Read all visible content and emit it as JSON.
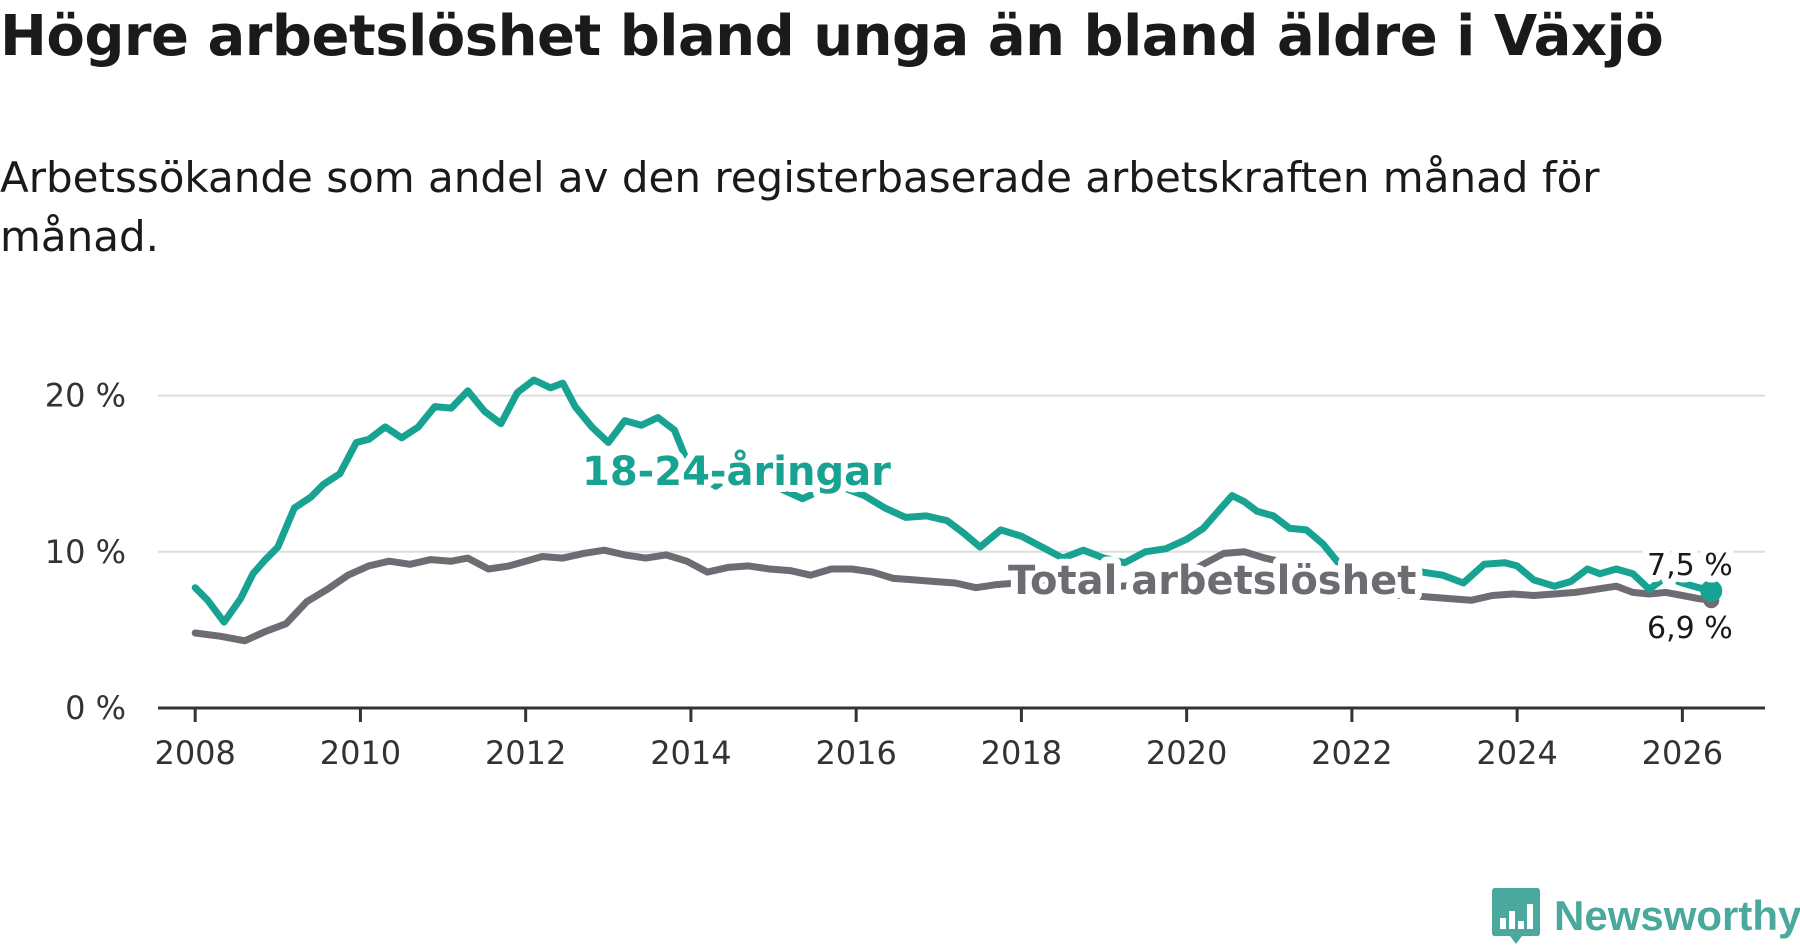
{
  "title": "Högre arbetslöshet bland unga än bland äldre i Växjö",
  "subtitle": "Arbetssökande som andel av den registerbaserade arbetskraften månad för månad.",
  "brand": {
    "name": "Newsworthy",
    "icon": "bar-chart-bubble-icon"
  },
  "colors": {
    "youth": "#17a291",
    "total": "#6f6b73",
    "grid": "#dddddd",
    "axis": "#333333"
  },
  "chart_data": {
    "type": "line",
    "title": "Högre arbetslöshet bland unga än bland äldre i Växjö",
    "xlabel": "",
    "ylabel": "",
    "xlim": [
      2007.55,
      2027.0
    ],
    "ylim": [
      0,
      21
    ],
    "x_ticks": [
      2008,
      2010,
      2012,
      2014,
      2016,
      2018,
      2020,
      2022,
      2024,
      2026
    ],
    "x_tick_labels": [
      "2008",
      "2010",
      "2012",
      "2014",
      "2016",
      "2018",
      "2020",
      "2022",
      "2024",
      "2026"
    ],
    "y_ticks": [
      0,
      10,
      20
    ],
    "y_tick_labels": [
      "0 %",
      "10 %",
      "20 %"
    ],
    "grid": true,
    "series": [
      {
        "name": "18-24-åringar",
        "label": "18-24-åringar",
        "end_label": "7,5 %",
        "points": [
          [
            2008.0,
            7.7
          ],
          [
            2008.15,
            6.9
          ],
          [
            2008.35,
            5.5
          ],
          [
            2008.55,
            7.0
          ],
          [
            2008.7,
            8.6
          ],
          [
            2008.85,
            9.5
          ],
          [
            2009.0,
            10.3
          ],
          [
            2009.2,
            12.8
          ],
          [
            2009.4,
            13.5
          ],
          [
            2009.55,
            14.3
          ],
          [
            2009.75,
            15.0
          ],
          [
            2009.95,
            17.0
          ],
          [
            2010.1,
            17.2
          ],
          [
            2010.3,
            18.0
          ],
          [
            2010.5,
            17.3
          ],
          [
            2010.7,
            18.0
          ],
          [
            2010.9,
            19.3
          ],
          [
            2011.1,
            19.2
          ],
          [
            2011.3,
            20.3
          ],
          [
            2011.5,
            19.0
          ],
          [
            2011.7,
            18.2
          ],
          [
            2011.9,
            20.2
          ],
          [
            2012.1,
            21.0
          ],
          [
            2012.3,
            20.5
          ],
          [
            2012.45,
            20.8
          ],
          [
            2012.6,
            19.3
          ],
          [
            2012.8,
            18.0
          ],
          [
            2013.0,
            17.0
          ],
          [
            2013.2,
            18.4
          ],
          [
            2013.4,
            18.1
          ],
          [
            2013.6,
            18.6
          ],
          [
            2013.8,
            17.8
          ],
          [
            2014.0,
            15.2
          ],
          [
            2014.3,
            14.2
          ],
          [
            2014.6,
            15.3
          ],
          [
            2014.9,
            14.8
          ],
          [
            2015.1,
            14.0
          ],
          [
            2015.35,
            13.4
          ],
          [
            2015.6,
            14.0
          ],
          [
            2015.85,
            14.1
          ],
          [
            2016.1,
            13.6
          ],
          [
            2016.35,
            12.8
          ],
          [
            2016.6,
            12.2
          ],
          [
            2016.85,
            12.3
          ],
          [
            2017.1,
            12.0
          ],
          [
            2017.3,
            11.2
          ],
          [
            2017.5,
            10.3
          ],
          [
            2017.75,
            11.4
          ],
          [
            2018.0,
            11.0
          ],
          [
            2018.25,
            10.3
          ],
          [
            2018.5,
            9.6
          ],
          [
            2018.75,
            10.1
          ],
          [
            2019.0,
            9.6
          ],
          [
            2019.25,
            9.3
          ],
          [
            2019.5,
            10.0
          ],
          [
            2019.75,
            10.2
          ],
          [
            2020.0,
            10.8
          ],
          [
            2020.2,
            11.5
          ],
          [
            2020.4,
            12.7
          ],
          [
            2020.55,
            13.6
          ],
          [
            2020.7,
            13.2
          ],
          [
            2020.85,
            12.6
          ],
          [
            2021.05,
            12.3
          ],
          [
            2021.25,
            11.5
          ],
          [
            2021.45,
            11.4
          ],
          [
            2021.65,
            10.5
          ],
          [
            2021.85,
            9.2
          ],
          [
            2022.0,
            8.4
          ],
          [
            2022.2,
            8.2
          ],
          [
            2022.45,
            8.3
          ],
          [
            2022.65,
            8.9
          ],
          [
            2022.85,
            8.7
          ],
          [
            2023.1,
            8.5
          ],
          [
            2023.35,
            8.0
          ],
          [
            2023.6,
            9.2
          ],
          [
            2023.85,
            9.3
          ],
          [
            2024.0,
            9.1
          ],
          [
            2024.2,
            8.2
          ],
          [
            2024.45,
            7.8
          ],
          [
            2024.65,
            8.1
          ],
          [
            2024.85,
            8.9
          ],
          [
            2025.0,
            8.6
          ],
          [
            2025.2,
            8.9
          ],
          [
            2025.4,
            8.6
          ],
          [
            2025.6,
            7.6
          ],
          [
            2025.8,
            8.4
          ],
          [
            2026.0,
            8.0
          ],
          [
            2026.2,
            7.7
          ],
          [
            2026.35,
            7.5
          ]
        ]
      },
      {
        "name": "Total arbetslöshet",
        "label": "Total arbetslöshet",
        "end_label": "6,9 %",
        "points": [
          [
            2008.0,
            4.8
          ],
          [
            2008.3,
            4.6
          ],
          [
            2008.6,
            4.3
          ],
          [
            2008.85,
            4.9
          ],
          [
            2009.1,
            5.4
          ],
          [
            2009.35,
            6.8
          ],
          [
            2009.6,
            7.6
          ],
          [
            2009.85,
            8.5
          ],
          [
            2010.1,
            9.1
          ],
          [
            2010.35,
            9.4
          ],
          [
            2010.6,
            9.2
          ],
          [
            2010.85,
            9.5
          ],
          [
            2011.1,
            9.4
          ],
          [
            2011.3,
            9.6
          ],
          [
            2011.55,
            8.9
          ],
          [
            2011.8,
            9.1
          ],
          [
            2012.0,
            9.4
          ],
          [
            2012.2,
            9.7
          ],
          [
            2012.45,
            9.6
          ],
          [
            2012.7,
            9.9
          ],
          [
            2012.95,
            10.1
          ],
          [
            2013.2,
            9.8
          ],
          [
            2013.45,
            9.6
          ],
          [
            2013.7,
            9.8
          ],
          [
            2013.95,
            9.4
          ],
          [
            2014.2,
            8.7
          ],
          [
            2014.45,
            9.0
          ],
          [
            2014.7,
            9.1
          ],
          [
            2014.95,
            8.9
          ],
          [
            2015.2,
            8.8
          ],
          [
            2015.45,
            8.5
          ],
          [
            2015.7,
            8.9
          ],
          [
            2015.95,
            8.9
          ],
          [
            2016.2,
            8.7
          ],
          [
            2016.45,
            8.3
          ],
          [
            2016.7,
            8.2
          ],
          [
            2016.95,
            8.1
          ],
          [
            2017.2,
            8.0
          ],
          [
            2017.45,
            7.7
          ],
          [
            2017.7,
            7.9
          ],
          [
            2017.95,
            8.0
          ],
          [
            2018.2,
            8.1
          ],
          [
            2018.45,
            8.0
          ],
          [
            2018.7,
            7.9
          ],
          [
            2018.95,
            7.8
          ],
          [
            2019.2,
            7.8
          ],
          [
            2019.45,
            7.9
          ],
          [
            2019.7,
            8.0
          ],
          [
            2019.95,
            8.4
          ],
          [
            2020.2,
            9.2
          ],
          [
            2020.45,
            9.9
          ],
          [
            2020.7,
            10.0
          ],
          [
            2020.95,
            9.6
          ],
          [
            2021.2,
            9.3
          ],
          [
            2021.45,
            8.6
          ],
          [
            2021.7,
            8.0
          ],
          [
            2021.95,
            7.6
          ],
          [
            2022.2,
            7.3
          ],
          [
            2022.45,
            7.2
          ],
          [
            2022.7,
            7.2
          ],
          [
            2022.95,
            7.1
          ],
          [
            2023.2,
            7.0
          ],
          [
            2023.45,
            6.9
          ],
          [
            2023.7,
            7.2
          ],
          [
            2023.95,
            7.3
          ],
          [
            2024.2,
            7.2
          ],
          [
            2024.45,
            7.3
          ],
          [
            2024.7,
            7.4
          ],
          [
            2024.95,
            7.6
          ],
          [
            2025.2,
            7.8
          ],
          [
            2025.4,
            7.4
          ],
          [
            2025.6,
            7.3
          ],
          [
            2025.8,
            7.4
          ],
          [
            2026.0,
            7.2
          ],
          [
            2026.2,
            7.0
          ],
          [
            2026.35,
            6.9
          ]
        ]
      }
    ]
  }
}
